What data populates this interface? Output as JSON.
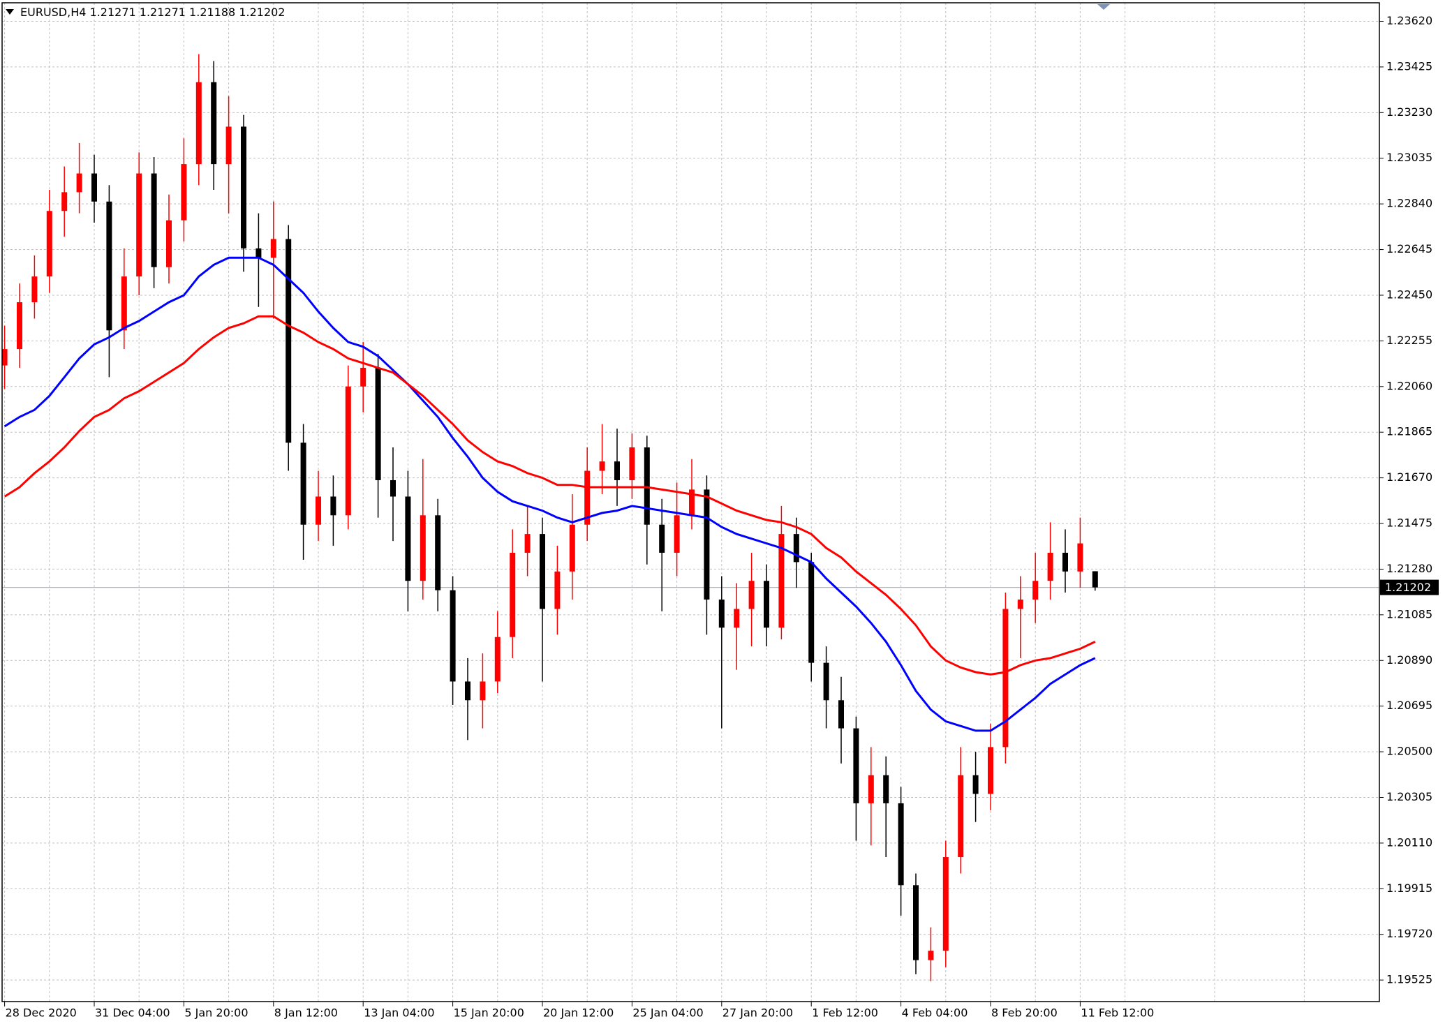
{
  "chart_data": {
    "type": "candlestick",
    "symbol": "EURUSD,H4",
    "open": [
      1.2215,
      1.2222,
      1.2242,
      1.2253,
      1.2281,
      1.2289,
      1.2297,
      1.2285,
      1.223,
      1.2253,
      1.2297,
      1.2257,
      1.2277,
      1.2301,
      1.2336,
      1.2301,
      1.2317,
      1.2265,
      1.2261,
      1.2269,
      1.2182,
      1.2147,
      1.2159,
      1.2151,
      1.2206,
      1.2214,
      1.2166,
      1.2159,
      1.2123,
      1.2151,
      1.2119,
      1.208,
      1.2072,
      1.208,
      1.2099,
      1.2135,
      1.2143,
      1.2111,
      1.2127,
      1.2147,
      1.217,
      1.2174,
      1.2166,
      1.218,
      1.2147,
      1.2135,
      1.2151,
      1.2162,
      1.2115,
      1.2103,
      1.2111,
      1.2123,
      1.2103,
      1.2143,
      1.2131,
      1.2088,
      1.2072,
      1.206,
      1.2028,
      1.204,
      1.2028,
      1.1993,
      1.1961,
      1.1965,
      1.2005,
      1.204,
      1.2032,
      1.2052,
      1.2111,
      1.2115,
      1.2123,
      1.2135,
      1.2127,
      1.21271
    ],
    "high": [
      1.2232,
      1.225,
      1.2262,
      1.229,
      1.23,
      1.231,
      1.2305,
      1.2292,
      1.2265,
      1.2306,
      1.2304,
      1.2288,
      1.2312,
      1.2348,
      1.2345,
      1.233,
      1.2322,
      1.228,
      1.2285,
      1.2275,
      1.219,
      1.217,
      1.2168,
      1.2215,
      1.2225,
      1.222,
      1.218,
      1.217,
      1.2175,
      1.2158,
      1.2125,
      1.209,
      1.2092,
      1.211,
      1.2145,
      1.2155,
      1.215,
      1.2138,
      1.216,
      1.218,
      1.219,
      1.2188,
      1.2186,
      1.2185,
      1.2158,
      1.2165,
      1.2175,
      1.2168,
      1.2125,
      1.2122,
      1.2135,
      1.213,
      1.2155,
      1.215,
      1.2135,
      1.2095,
      1.2082,
      1.2065,
      1.2052,
      1.2048,
      1.2035,
      1.1998,
      1.1975,
      1.2012,
      1.2052,
      1.205,
      1.2062,
      1.2118,
      1.2125,
      1.2135,
      1.2148,
      1.2145,
      1.215,
      1.21271
    ],
    "low": [
      1.2205,
      1.2214,
      1.2235,
      1.2246,
      1.227,
      1.228,
      1.2276,
      1.221,
      1.2222,
      1.2245,
      1.2248,
      1.225,
      1.2268,
      1.2292,
      1.229,
      1.228,
      1.2255,
      1.224,
      1.2235,
      1.217,
      1.2132,
      1.214,
      1.2138,
      1.2145,
      1.2195,
      1.215,
      1.214,
      1.211,
      1.2115,
      1.211,
      1.207,
      1.2055,
      1.206,
      1.2075,
      1.209,
      1.2125,
      1.208,
      1.21,
      1.2115,
      1.214,
      1.216,
      1.2155,
      1.2158,
      1.213,
      1.211,
      1.2125,
      1.2145,
      1.21,
      1.206,
      1.2085,
      1.2095,
      1.2095,
      1.2098,
      1.212,
      1.208,
      1.206,
      1.2045,
      1.2012,
      1.201,
      1.2005,
      1.198,
      1.1955,
      1.1952,
      1.1958,
      1.1998,
      1.202,
      1.2025,
      1.2045,
      1.209,
      1.2105,
      1.2115,
      1.2118,
      1.212,
      1.21188
    ],
    "close": [
      1.2222,
      1.2242,
      1.2253,
      1.2281,
      1.2289,
      1.2297,
      1.2285,
      1.223,
      1.2253,
      1.2297,
      1.2257,
      1.2277,
      1.2301,
      1.2336,
      1.2301,
      1.2317,
      1.2265,
      1.2261,
      1.2269,
      1.2182,
      1.2147,
      1.2159,
      1.2151,
      1.2206,
      1.2214,
      1.2166,
      1.2159,
      1.2123,
      1.2151,
      1.2119,
      1.208,
      1.2072,
      1.208,
      1.2099,
      1.2135,
      1.2143,
      1.2111,
      1.2127,
      1.2147,
      1.217,
      1.2174,
      1.2166,
      1.218,
      1.2147,
      1.2135,
      1.2151,
      1.2162,
      1.2115,
      1.2103,
      1.2111,
      1.2123,
      1.2103,
      1.2143,
      1.2131,
      1.2088,
      1.2072,
      1.206,
      1.2028,
      1.204,
      1.2028,
      1.1993,
      1.1961,
      1.1965,
      1.2005,
      1.204,
      1.2032,
      1.2052,
      1.2111,
      1.2115,
      1.2123,
      1.2135,
      1.2127,
      1.2139,
      1.21202
    ],
    "up_color": "#ff0000",
    "down_color": "#000000",
    "series": [
      {
        "color": "#0000ff",
        "values": [
          1.2189,
          1.2193,
          1.2196,
          1.2202,
          1.221,
          1.2218,
          1.2224,
          1.2227,
          1.2231,
          1.2234,
          1.2238,
          1.2242,
          1.2245,
          1.2253,
          1.2258,
          1.2261,
          1.2261,
          1.2261,
          1.2258,
          1.2252,
          1.2246,
          1.2238,
          1.2231,
          1.2225,
          1.2223,
          1.2219,
          1.2213,
          1.2207,
          1.22,
          1.2193,
          1.2184,
          1.2176,
          1.2167,
          1.2161,
          1.2157,
          1.2155,
          1.2153,
          1.215,
          1.2148,
          1.215,
          1.2152,
          1.2153,
          1.2155,
          1.2154,
          1.2153,
          1.2152,
          1.2151,
          1.215,
          1.2146,
          1.2143,
          1.2141,
          1.2139,
          1.2137,
          1.2134,
          1.2131,
          1.2124,
          1.2118,
          1.2112,
          1.2105,
          1.2097,
          1.2087,
          1.2076,
          1.2068,
          1.2063,
          1.2061,
          1.2059,
          1.2059,
          1.2063,
          1.2068,
          1.2073,
          1.2079,
          1.2083,
          1.2087,
          1.209
        ]
      },
      {
        "color": "#ff0000",
        "values": [
          1.2159,
          1.2163,
          1.2169,
          1.2174,
          1.218,
          1.2187,
          1.2193,
          1.2196,
          1.2201,
          1.2204,
          1.2208,
          1.2212,
          1.2216,
          1.2222,
          1.2227,
          1.2231,
          1.2233,
          1.2236,
          1.2236,
          1.2232,
          1.2229,
          1.2225,
          1.2222,
          1.2218,
          1.2216,
          1.2214,
          1.2212,
          1.2207,
          1.2202,
          1.2196,
          1.219,
          1.2183,
          1.2178,
          1.2174,
          1.2172,
          1.2169,
          1.2167,
          1.2164,
          1.2164,
          1.2163,
          1.2163,
          1.2163,
          1.2163,
          1.2163,
          1.2162,
          1.2161,
          1.216,
          1.2159,
          1.2156,
          1.2153,
          1.2151,
          1.2149,
          1.2148,
          1.2146,
          1.2143,
          1.2137,
          1.2133,
          1.2127,
          1.2122,
          1.2117,
          1.2111,
          1.2104,
          1.2095,
          1.2089,
          1.2086,
          1.2084,
          1.2083,
          1.2084,
          1.2087,
          1.2089,
          1.209,
          1.2092,
          1.2094,
          1.2097
        ]
      }
    ],
    "ylim": [
      1.19433,
      1.23699
    ],
    "yticks": [
      {
        "value": 1.2362,
        "label": "1.23620"
      },
      1.23425,
      {
        "value": 1.2323,
        "label": "1.23230"
      },
      1.23035,
      {
        "value": 1.2284,
        "label": "1.22840"
      },
      1.22645,
      {
        "value": 1.2245,
        "label": "1.22450"
      },
      1.22255,
      {
        "value": 1.2206,
        "label": "1.22060"
      },
      1.21865,
      {
        "value": 1.2167,
        "label": "1.21670"
      },
      1.21475,
      {
        "value": 1.2128,
        "label": "1.21280"
      },
      1.21085,
      {
        "value": 1.2089,
        "label": "1.20890"
      },
      1.20695,
      {
        "value": 1.205,
        "label": "1.20500"
      },
      1.20305,
      {
        "value": 1.2011,
        "label": "1.20110"
      },
      1.19915,
      {
        "value": 1.1972,
        "label": "1.19720"
      },
      1.19525
    ],
    "xticks": [
      {
        "value": 0,
        "label": "28 Dec 2020"
      },
      {
        "value": 6,
        "label": "31 Dec 04:00"
      },
      {
        "value": 12,
        "label": "5 Jan 20:00"
      },
      {
        "value": 18,
        "label": "8 Jan 12:00"
      },
      {
        "value": 24,
        "label": "13 Jan 04:00"
      },
      {
        "value": 30,
        "label": "15 Jan 20:00"
      },
      {
        "value": 36,
        "label": "20 Jan 12:00"
      },
      {
        "value": 42,
        "label": "25 Jan 04:00"
      },
      {
        "value": 48,
        "label": "27 Jan 20:00"
      },
      {
        "value": 54,
        "label": "1 Feb 12:00"
      },
      {
        "value": 60,
        "label": "4 Feb 04:00"
      },
      {
        "value": 66,
        "label": "8 Feb 20:00"
      },
      {
        "value": 72,
        "label": "11 Feb 12:00"
      }
    ],
    "grid": true
  }
}
